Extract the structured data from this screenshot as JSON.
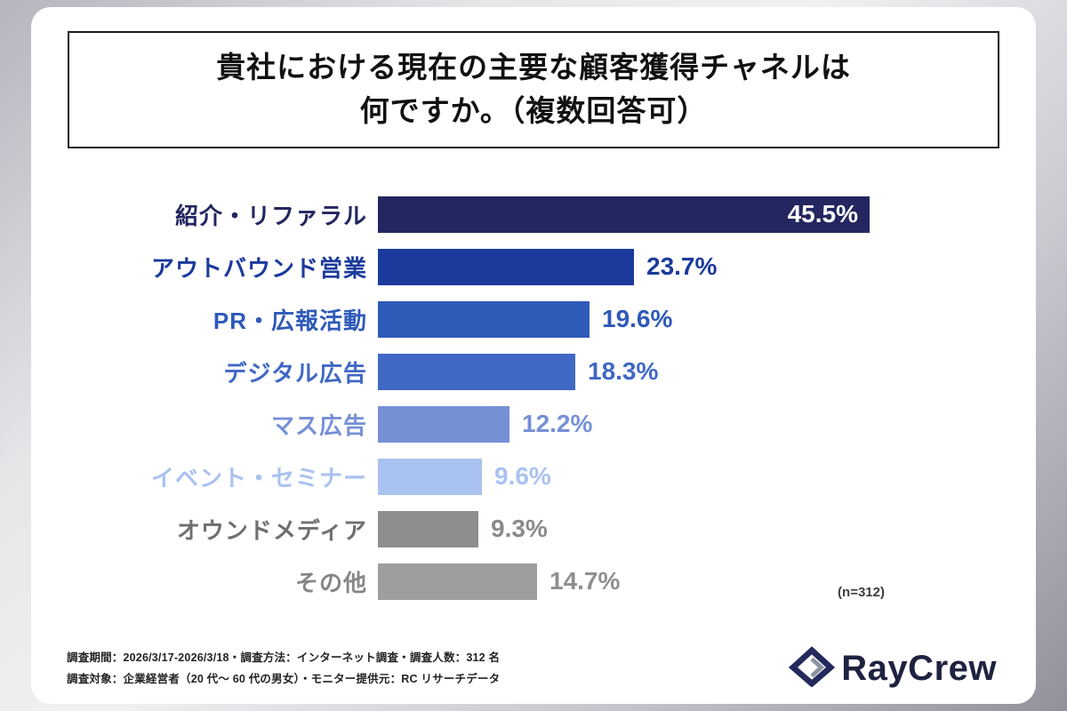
{
  "title": {
    "line1": "貴社における現在の主要な顧客獲得チャネルは",
    "line2": "何ですか。（複数回答可）"
  },
  "chart_data": {
    "type": "bar",
    "orientation": "horizontal",
    "title": "貴社における現在の主要な顧客獲得チャネルは何ですか。（複数回答可）",
    "categories": [
      "紹介・リファラル",
      "アウトバウンド営業",
      "PR・広報活動",
      "デジタル広告",
      "マス広告",
      "イベント・セミナー",
      "オウンドメディア",
      "その他"
    ],
    "values": [
      45.5,
      23.7,
      19.6,
      18.3,
      12.2,
      9.6,
      9.3,
      14.7
    ],
    "value_labels": [
      "45.5%",
      "23.7%",
      "19.6%",
      "18.3%",
      "12.2%",
      "9.6%",
      "9.3%",
      "14.7%"
    ],
    "value_inside": [
      true,
      false,
      false,
      false,
      false,
      false,
      false,
      false
    ],
    "bar_colors": [
      "#23265f",
      "#1b3a9c",
      "#2e5ab8",
      "#4068c4",
      "#7690d6",
      "#a9c2ef",
      "#8e8e8e",
      "#9e9e9e"
    ],
    "label_colors": [
      "#23265f",
      "#1b3a9c",
      "#2e5ab8",
      "#4068c4",
      "#7690d6",
      "#a9c2ef",
      "#6f6f6f",
      "#868686"
    ],
    "value_colors": [
      "#ffffff",
      "#1b3a9c",
      "#2e5ab8",
      "#4068c4",
      "#7690d6",
      "#a9c2ef",
      "#8a8a8a",
      "#8f8f8f"
    ],
    "xlim": [
      0,
      50
    ],
    "legend": "none",
    "grid": false,
    "note": "(n=312)"
  },
  "footer": {
    "line1": "調査期間：2026/3/17-2026/3/18・調査方法：インターネット調査・調査人数：312 名",
    "line2": "調査対象：企業経営者（20 代～ 60 代の男女）・モニター提供元：RC リサーチデータ",
    "logo_text": "RayCrew"
  },
  "colors": {
    "accent_navy": "#23265f",
    "logo_navy": "#232a5c",
    "logo_gray": "#8d93a0",
    "card_bg": "#ffffff",
    "title_border": "#1c1c1c"
  }
}
